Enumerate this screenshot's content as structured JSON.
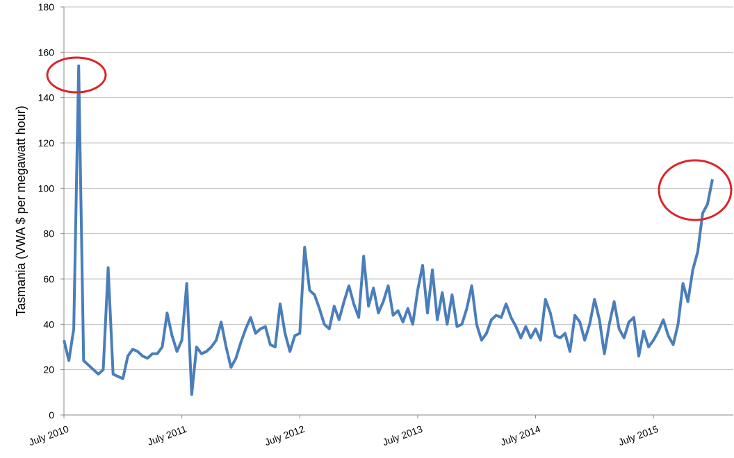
{
  "chart_data": {
    "type": "line",
    "y_label": "Tasmania  (VWA $ per megawatt hour)",
    "categories": [
      "July 2010",
      null,
      null,
      null,
      null,
      null,
      null,
      null,
      null,
      null,
      null,
      null,
      null,
      null,
      null,
      null,
      null,
      null,
      null,
      null,
      null,
      null,
      null,
      null,
      "July 2011",
      null,
      null,
      null,
      null,
      null,
      null,
      null,
      null,
      null,
      null,
      null,
      null,
      null,
      null,
      null,
      null,
      null,
      null,
      null,
      null,
      null,
      null,
      null,
      "July 2012",
      null,
      null,
      null,
      null,
      null,
      null,
      null,
      null,
      null,
      null,
      null,
      null,
      null,
      null,
      null,
      null,
      null,
      null,
      null,
      null,
      null,
      null,
      null,
      "July 2013",
      null,
      null,
      null,
      null,
      null,
      null,
      null,
      null,
      null,
      null,
      null,
      null,
      null,
      null,
      null,
      null,
      null,
      null,
      null,
      null,
      null,
      null,
      null,
      "July 2014",
      null,
      null,
      null,
      null,
      null,
      null,
      null,
      null,
      null,
      null,
      null,
      null,
      null,
      null,
      null,
      null,
      null,
      null,
      null,
      null,
      null,
      null,
      null,
      "July 2015",
      null,
      null,
      null,
      null,
      null,
      null,
      null,
      null,
      null,
      null,
      null,
      null
    ],
    "values": [
      33,
      24,
      38,
      154,
      24,
      22,
      20,
      18,
      20,
      65,
      18,
      17,
      16,
      26,
      29,
      28,
      26,
      25,
      27,
      27,
      30,
      45,
      35,
      28,
      33,
      58,
      9,
      30,
      27,
      28,
      30,
      33,
      41,
      30,
      21,
      25,
      32,
      38,
      43,
      36,
      38,
      39,
      31,
      30,
      49,
      36,
      28,
      35,
      36,
      74,
      55,
      53,
      47,
      40,
      38,
      48,
      42,
      50,
      57,
      49,
      43,
      70,
      48,
      56,
      45,
      50,
      57,
      44,
      46,
      41,
      47,
      40,
      55,
      66,
      45,
      64,
      42,
      54,
      40,
      53,
      39,
      40,
      47,
      57,
      40,
      33,
      36,
      42,
      44,
      43,
      49,
      43,
      39,
      34,
      39,
      34,
      38,
      33,
      51,
      45,
      35,
      34,
      36,
      28,
      44,
      41,
      33,
      40,
      51,
      42,
      27,
      40,
      50,
      38,
      34,
      41,
      43,
      26,
      37,
      30,
      33,
      37,
      42,
      35,
      31,
      40,
      58,
      50,
      64,
      72,
      89,
      93,
      104
    ],
    "color": "#4a7ebb",
    "ylim": [
      0,
      180
    ],
    "yticks": [
      0,
      20,
      40,
      60,
      80,
      100,
      120,
      140,
      160,
      180
    ],
    "grid": true
  }
}
